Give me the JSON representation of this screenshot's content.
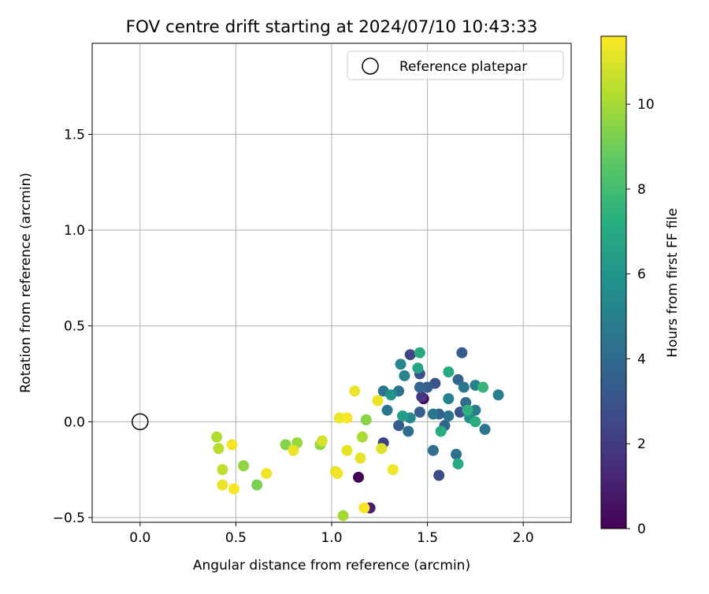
{
  "chart_data": {
    "type": "scatter",
    "title": "FOV centre drift starting at 2024/07/10 10:43:33",
    "xlabel": "Angular distance from reference (arcmin)",
    "ylabel": "Rotation from reference (arcmin)",
    "xlim": [
      -0.25,
      2.25
    ],
    "ylim": [
      -0.525,
      1.975
    ],
    "xticks": [
      "0.0",
      "0.5",
      "1.0",
      "1.5",
      "2.0"
    ],
    "yticks": [
      "−0.5",
      "0.0",
      "0.5",
      "1.0",
      "1.5"
    ],
    "grid": true,
    "legend": {
      "placement": "top-right",
      "entries": [
        "Reference platepar"
      ]
    },
    "reference_point": {
      "x": 0.0,
      "y": 0.0
    },
    "colorbar": {
      "label": "Hours from first FF file",
      "range": [
        0,
        11.6
      ],
      "ticks": [
        "0",
        "2",
        "4",
        "6",
        "8",
        "10"
      ],
      "colormap": "viridis"
    },
    "points": [
      {
        "x": 1.14,
        "y": -0.29,
        "h": 0.1
      },
      {
        "x": 1.48,
        "y": 0.12,
        "h": 0.3
      },
      {
        "x": 1.2,
        "y": -0.45,
        "h": 1.0
      },
      {
        "x": 1.47,
        "y": 0.13,
        "h": 1.8
      },
      {
        "x": 1.27,
        "y": -0.11,
        "h": 2.2
      },
      {
        "x": 1.56,
        "y": -0.28,
        "h": 2.6
      },
      {
        "x": 1.41,
        "y": 0.35,
        "h": 2.4
      },
      {
        "x": 1.46,
        "y": 0.25,
        "h": 2.9
      },
      {
        "x": 1.54,
        "y": 0.2,
        "h": 3.0
      },
      {
        "x": 1.35,
        "y": -0.02,
        "h": 3.3
      },
      {
        "x": 1.67,
        "y": 0.05,
        "h": 3.0
      },
      {
        "x": 1.46,
        "y": 0.05,
        "h": 3.5
      },
      {
        "x": 1.68,
        "y": 0.36,
        "h": 3.4
      },
      {
        "x": 1.5,
        "y": 0.18,
        "h": 3.6
      },
      {
        "x": 1.66,
        "y": 0.22,
        "h": 3.8
      },
      {
        "x": 1.59,
        "y": -0.02,
        "h": 3.7
      },
      {
        "x": 1.56,
        "y": 0.04,
        "h": 3.7
      },
      {
        "x": 1.46,
        "y": 0.18,
        "h": 3.9
      },
      {
        "x": 1.4,
        "y": -0.05,
        "h": 4.1
      },
      {
        "x": 1.53,
        "y": -0.15,
        "h": 4.2
      },
      {
        "x": 1.7,
        "y": 0.1,
        "h": 4.0
      },
      {
        "x": 1.65,
        "y": -0.17,
        "h": 4.3
      },
      {
        "x": 1.27,
        "y": 0.16,
        "h": 4.5
      },
      {
        "x": 1.35,
        "y": 0.16,
        "h": 4.4
      },
      {
        "x": 1.29,
        "y": 0.06,
        "h": 4.6
      },
      {
        "x": 1.53,
        "y": 0.04,
        "h": 4.5
      },
      {
        "x": 1.61,
        "y": 0.03,
        "h": 4.4
      },
      {
        "x": 1.69,
        "y": 0.18,
        "h": 4.7
      },
      {
        "x": 1.8,
        "y": -0.04,
        "h": 4.6
      },
      {
        "x": 1.87,
        "y": 0.14,
        "h": 4.9
      },
      {
        "x": 1.61,
        "y": 0.12,
        "h": 5.0
      },
      {
        "x": 1.75,
        "y": 0.06,
        "h": 4.9
      },
      {
        "x": 1.75,
        "y": 0.19,
        "h": 5.1
      },
      {
        "x": 1.38,
        "y": 0.24,
        "h": 5.2
      },
      {
        "x": 1.36,
        "y": 0.3,
        "h": 5.3
      },
      {
        "x": 1.41,
        "y": 0.02,
        "h": 5.4
      },
      {
        "x": 1.72,
        "y": 0.02,
        "h": 5.6
      },
      {
        "x": 1.31,
        "y": 0.14,
        "h": 6.0
      },
      {
        "x": 1.37,
        "y": 0.03,
        "h": 6.4
      },
      {
        "x": 1.45,
        "y": 0.28,
        "h": 6.8
      },
      {
        "x": 1.46,
        "y": 0.36,
        "h": 7.0
      },
      {
        "x": 1.61,
        "y": 0.26,
        "h": 7.0
      },
      {
        "x": 1.57,
        "y": -0.05,
        "h": 7.1
      },
      {
        "x": 1.66,
        "y": -0.22,
        "h": 7.0
      },
      {
        "x": 1.75,
        "y": 0.0,
        "h": 7.2
      },
      {
        "x": 1.71,
        "y": 0.06,
        "h": 7.4
      },
      {
        "x": 1.79,
        "y": 0.18,
        "h": 7.6
      },
      {
        "x": 0.61,
        "y": -0.33,
        "h": 9.2
      },
      {
        "x": 0.76,
        "y": -0.12,
        "h": 9.4
      },
      {
        "x": 1.18,
        "y": 0.01,
        "h": 9.5
      },
      {
        "x": 0.54,
        "y": -0.23,
        "h": 9.6
      },
      {
        "x": 0.82,
        "y": -0.11,
        "h": 9.8
      },
      {
        "x": 0.94,
        "y": -0.12,
        "h": 9.7
      },
      {
        "x": 1.16,
        "y": -0.08,
        "h": 10.1
      },
      {
        "x": 1.06,
        "y": -0.49,
        "h": 10.0
      },
      {
        "x": 0.4,
        "y": -0.08,
        "h": 10.2
      },
      {
        "x": 0.41,
        "y": -0.14,
        "h": 10.4
      },
      {
        "x": 0.43,
        "y": -0.25,
        "h": 10.5
      },
      {
        "x": 0.95,
        "y": -0.1,
        "h": 10.9
      },
      {
        "x": 0.43,
        "y": -0.33,
        "h": 11.3
      },
      {
        "x": 0.48,
        "y": -0.12,
        "h": 11.4
      },
      {
        "x": 0.49,
        "y": -0.35,
        "h": 11.5
      },
      {
        "x": 0.66,
        "y": -0.27,
        "h": 11.4
      },
      {
        "x": 0.8,
        "y": -0.15,
        "h": 11.3
      },
      {
        "x": 1.02,
        "y": -0.26,
        "h": 11.1
      },
      {
        "x": 1.03,
        "y": -0.27,
        "h": 11.4
      },
      {
        "x": 1.04,
        "y": 0.02,
        "h": 11.3
      },
      {
        "x": 1.08,
        "y": -0.15,
        "h": 11.2
      },
      {
        "x": 1.08,
        "y": 0.02,
        "h": 11.5
      },
      {
        "x": 1.12,
        "y": 0.16,
        "h": 11.3
      },
      {
        "x": 1.15,
        "y": -0.19,
        "h": 11.2
      },
      {
        "x": 1.17,
        "y": -0.45,
        "h": 11.5
      },
      {
        "x": 1.24,
        "y": 0.11,
        "h": 11.3
      },
      {
        "x": 1.26,
        "y": -0.14,
        "h": 11.1
      },
      {
        "x": 1.32,
        "y": -0.25,
        "h": 11.4
      }
    ]
  }
}
